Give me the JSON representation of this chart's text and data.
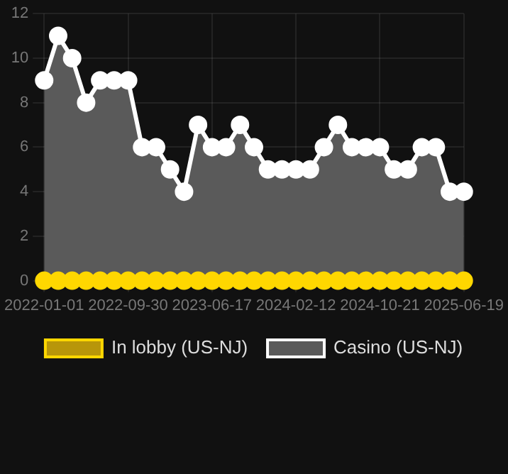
{
  "chart_data": {
    "type": "area",
    "categories": [
      "2022-01-01",
      null,
      null,
      null,
      null,
      null,
      "2022-09-30",
      null,
      null,
      null,
      null,
      null,
      "2023-06-17",
      null,
      null,
      null,
      null,
      null,
      "2024-02-12",
      null,
      null,
      null,
      null,
      null,
      "2024-10-21",
      null,
      null,
      null,
      null,
      null,
      "2025-06-19"
    ],
    "series": [
      {
        "name": "In lobby (US-NJ)",
        "type": "line",
        "color": "#ffd700",
        "values": [
          0,
          0,
          0,
          0,
          0,
          0,
          0,
          0,
          0,
          0,
          0,
          0,
          0,
          0,
          0,
          0,
          0,
          0,
          0,
          0,
          0,
          0,
          0,
          0,
          0,
          0,
          0,
          0,
          0,
          0,
          0
        ]
      },
      {
        "name": "Casino (US-NJ)",
        "color": "#ffffff",
        "values": [
          9,
          11,
          10,
          8,
          9,
          9,
          9,
          6,
          6,
          5,
          4,
          7,
          6,
          6,
          7,
          6,
          5,
          5,
          5,
          5,
          6,
          7,
          6,
          6,
          6,
          5,
          5,
          6,
          6,
          4,
          4
        ]
      }
    ],
    "ylim": [
      0,
      12
    ],
    "yticks": [
      0,
      2,
      4,
      6,
      8,
      10,
      12
    ],
    "grid": true,
    "legend": "bottom",
    "marker": "circle",
    "line_style": "solid"
  }
}
